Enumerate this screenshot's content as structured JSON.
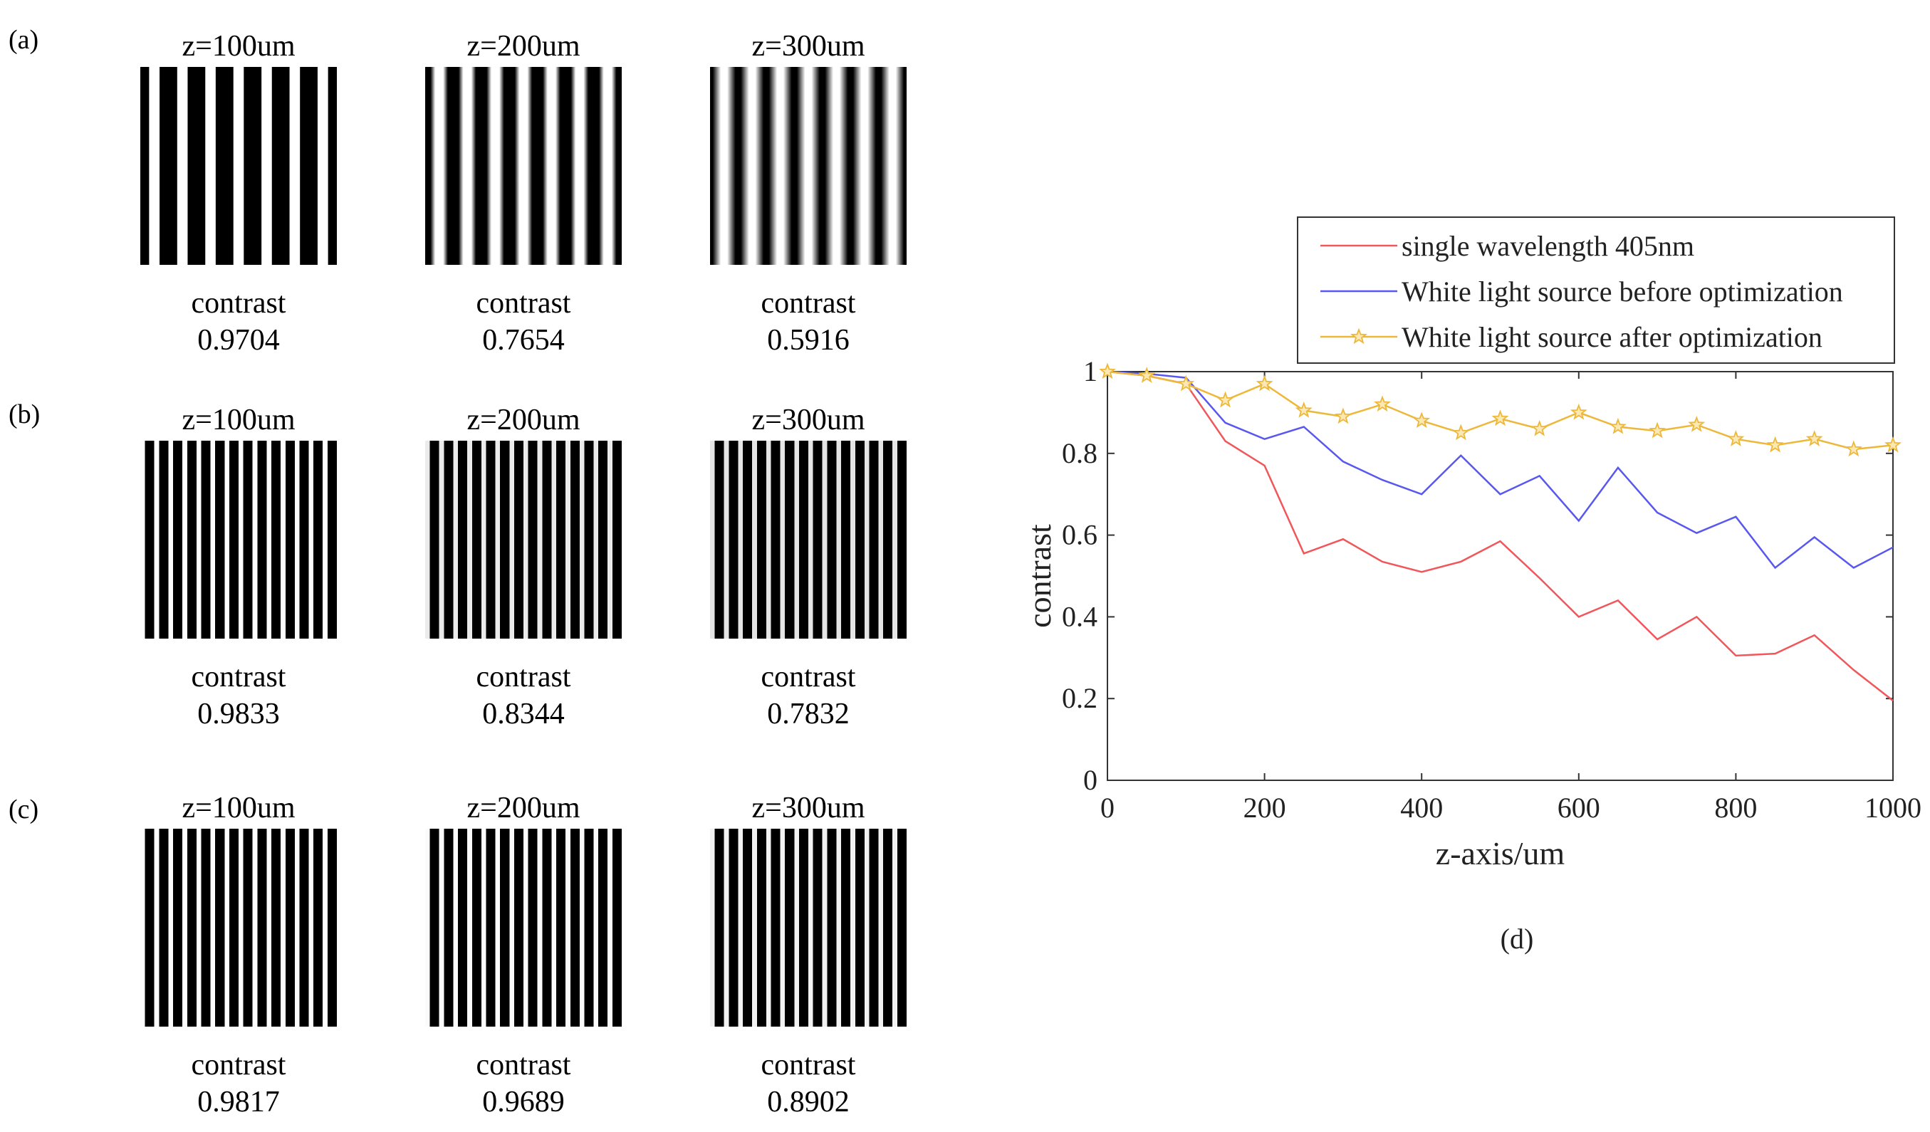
{
  "panels": [
    {
      "label": "(a)",
      "items": [
        {
          "title": "z=100um",
          "contrast_label": "contrast",
          "contrast_value": "0.9704",
          "contrast": 0.9704,
          "periods": 7
        },
        {
          "title": "z=200um",
          "contrast_label": "contrast",
          "contrast_value": "0.7654",
          "contrast": 0.7654,
          "periods": 7
        },
        {
          "title": "z=300um",
          "contrast_label": "contrast",
          "contrast_value": "0.5916",
          "contrast": 0.5916,
          "periods": 7
        }
      ]
    },
    {
      "label": "(b)",
      "items": [
        {
          "title": "z=100um",
          "contrast_label": "contrast",
          "contrast_value": "0.9833",
          "contrast": 0.9833,
          "periods": 14
        },
        {
          "title": "z=200um",
          "contrast_label": "contrast",
          "contrast_value": "0.8344",
          "contrast": 0.8344,
          "periods": 14
        },
        {
          "title": "z=300um",
          "contrast_label": "contrast",
          "contrast_value": "0.7832",
          "contrast": 0.7832,
          "periods": 14
        }
      ]
    },
    {
      "label": "(c)",
      "items": [
        {
          "title": "z=100um",
          "contrast_label": "contrast",
          "contrast_value": "0.9817",
          "contrast": 0.9817,
          "periods": 14
        },
        {
          "title": "z=200um",
          "contrast_label": "contrast",
          "contrast_value": "0.9689",
          "contrast": 0.9689,
          "periods": 14
        },
        {
          "title": "z=300um",
          "contrast_label": "contrast",
          "contrast_value": "0.8902",
          "contrast": 0.8902,
          "periods": 14
        }
      ]
    }
  ],
  "chart_data": {
    "type": "line",
    "panel_label": "(d)",
    "xlabel": "z-axis/um",
    "ylabel": "contrast",
    "xlim": [
      0,
      1000
    ],
    "ylim": [
      0,
      1
    ],
    "xticks": [
      0,
      200,
      400,
      600,
      800,
      1000
    ],
    "yticks": [
      0,
      0.2,
      0.4,
      0.6,
      0.8,
      1
    ],
    "ytick_labels": [
      "0",
      "0.2",
      "0.4",
      "0.6",
      "0.8",
      "1"
    ],
    "legend_position": "top-right",
    "x": [
      0,
      50,
      100,
      150,
      200,
      250,
      300,
      350,
      400,
      450,
      500,
      550,
      600,
      650,
      700,
      750,
      800,
      850,
      900,
      950,
      1000
    ],
    "series": [
      {
        "name": "single wavelength 405nm",
        "color": "#f0565a",
        "marker": "none",
        "values": [
          1.0,
          0.99,
          0.97,
          0.83,
          0.77,
          0.555,
          0.59,
          0.535,
          0.51,
          0.535,
          0.585,
          0.495,
          0.4,
          0.44,
          0.345,
          0.4,
          0.305,
          0.31,
          0.355,
          0.27,
          0.195
        ]
      },
      {
        "name": "White light source before optimization",
        "color": "#5858f0",
        "marker": "none",
        "values": [
          1.0,
          0.995,
          0.985,
          0.875,
          0.835,
          0.865,
          0.78,
          0.735,
          0.7,
          0.795,
          0.7,
          0.745,
          0.635,
          0.765,
          0.655,
          0.605,
          0.645,
          0.52,
          0.595,
          0.52,
          0.57
        ]
      },
      {
        "name": "White light source after optimization",
        "color": "#edb83a",
        "marker": "star",
        "values": [
          1.0,
          0.99,
          0.97,
          0.93,
          0.97,
          0.905,
          0.89,
          0.92,
          0.88,
          0.85,
          0.885,
          0.86,
          0.9,
          0.865,
          0.855,
          0.87,
          0.835,
          0.82,
          0.835,
          0.81,
          0.82
        ]
      }
    ]
  }
}
